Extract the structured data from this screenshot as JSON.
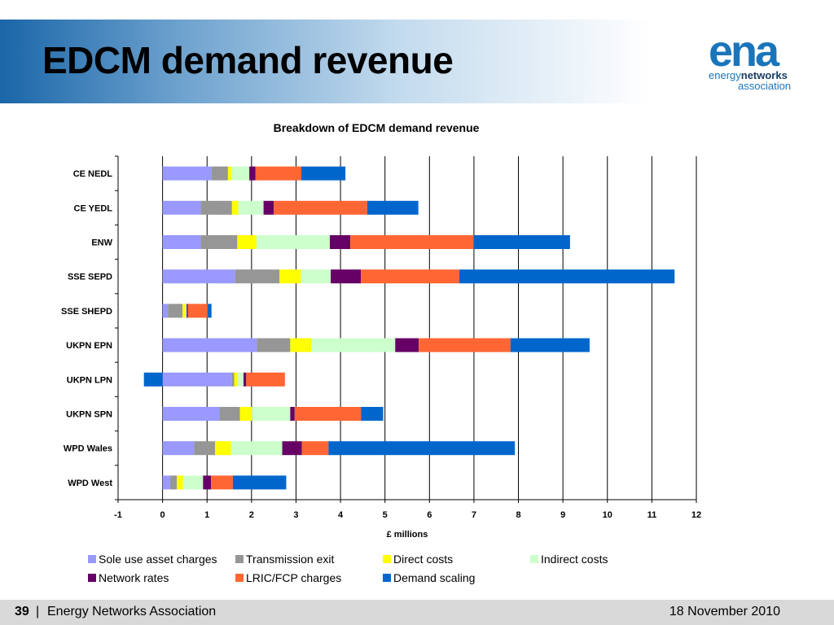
{
  "slide": {
    "title": "EDCM demand revenue"
  },
  "logo": {
    "mark": "ena",
    "line1_a": "energy",
    "line1_b": "networks",
    "line2": "association"
  },
  "footer": {
    "page": "39",
    "separator": "|",
    "org": "Energy Networks Association",
    "date": "18 November 2010"
  },
  "colors": {
    "sole_use": "#9999ff",
    "transmission": "#969696",
    "direct": "#ffff00",
    "indirect": "#ccffcc",
    "network_rates": "#660066",
    "lric": "#ff6633",
    "demand_scaling": "#0066cc"
  },
  "chart_data": {
    "type": "bar",
    "orientation": "horizontal",
    "stacked": true,
    "title": "Breakdown of EDCM demand revenue",
    "xlabel": "£ millions",
    "ylabel": "",
    "xlim": [
      -1,
      12
    ],
    "xticks": [
      -1,
      0,
      1,
      2,
      3,
      4,
      5,
      6,
      7,
      8,
      9,
      10,
      11,
      12
    ],
    "grid": "vertical",
    "legend_position": "bottom",
    "categories": [
      "CE NEDL",
      "CE YEDL",
      "ENW",
      "SSE SEPD",
      "SSE SHEPD",
      "UKPN EPN",
      "UKPN LPN",
      "UKPN SPN",
      "WPD Wales",
      "WPD West"
    ],
    "series": [
      {
        "name": "Sole use asset charges",
        "color": "#9999ff",
        "values": [
          1.1,
          0.86,
          0.86,
          1.63,
          0.12,
          2.12,
          1.56,
          1.28,
          0.71,
          0.17
        ]
      },
      {
        "name": "Transmission exit",
        "color": "#969696",
        "values": [
          0.37,
          0.7,
          0.82,
          1.0,
          0.33,
          0.75,
          0.05,
          0.46,
          0.47,
          0.15
        ]
      },
      {
        "name": "Direct costs",
        "color": "#ffff00",
        "values": [
          0.09,
          0.14,
          0.43,
          0.48,
          0.06,
          0.47,
          0.08,
          0.27,
          0.36,
          0.14
        ]
      },
      {
        "name": "Indirect costs",
        "color": "#ccffcc",
        "values": [
          0.39,
          0.57,
          1.65,
          0.67,
          0.03,
          1.89,
          0.13,
          0.86,
          1.15,
          0.45
        ]
      },
      {
        "name": "Network rates",
        "color": "#660066",
        "values": [
          0.14,
          0.23,
          0.46,
          0.68,
          0.03,
          0.53,
          0.06,
          0.1,
          0.44,
          0.18
        ]
      },
      {
        "name": "LRIC/FCP charges",
        "color": "#ff6633",
        "values": [
          1.03,
          2.1,
          2.77,
          2.21,
          0.44,
          2.06,
          0.87,
          1.49,
          0.6,
          0.49
        ]
      },
      {
        "name": "Demand scaling",
        "color": "#0066cc",
        "values": [
          0.99,
          1.15,
          2.17,
          4.84,
          0.09,
          1.78,
          -0.42,
          0.5,
          4.19,
          1.2
        ]
      }
    ]
  }
}
